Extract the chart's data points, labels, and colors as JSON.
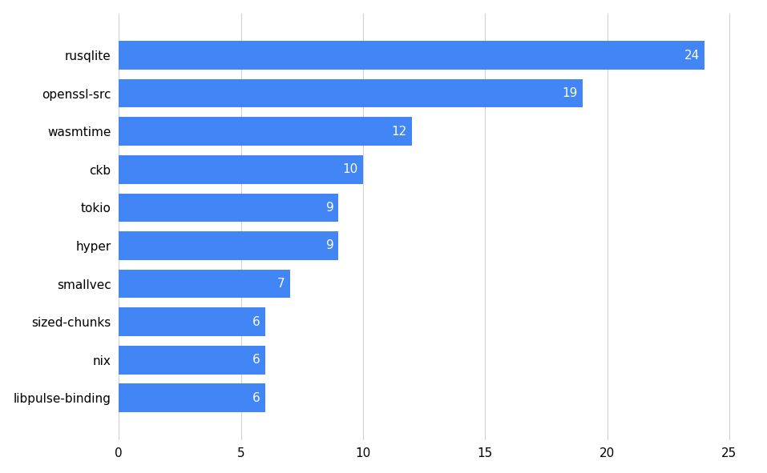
{
  "categories": [
    "libpulse-binding",
    "nix",
    "sized-chunks",
    "smallvec",
    "hyper",
    "tokio",
    "ckb",
    "wasmtime",
    "openssl-src",
    "rusqlite"
  ],
  "values": [
    6,
    6,
    6,
    7,
    9,
    9,
    10,
    12,
    19,
    24
  ],
  "bar_color": "#4285f4",
  "label_color": "#ffffff",
  "label_fontsize": 11,
  "tick_fontsize": 11,
  "background_color": "#ffffff",
  "grid_color": "#d0d0d0",
  "xlim": [
    0,
    26
  ],
  "xticks": [
    0,
    5,
    10,
    15,
    20,
    25
  ],
  "bar_height": 0.75,
  "ylim_padding": 0.6
}
